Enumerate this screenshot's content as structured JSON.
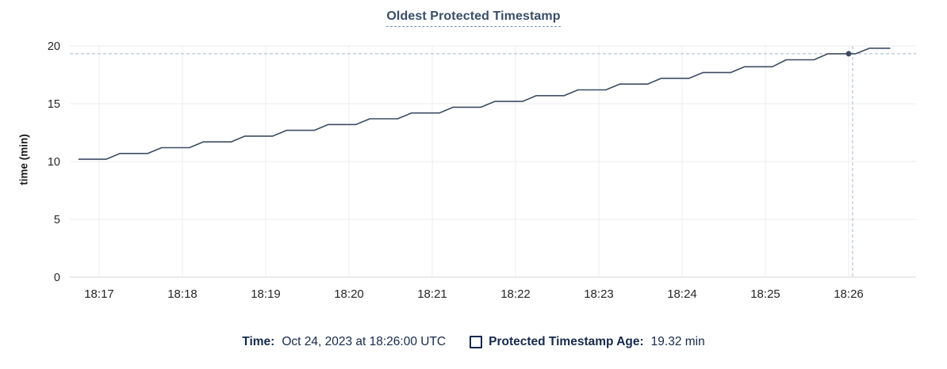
{
  "chart_data": {
    "type": "line",
    "title": "Oldest Protected Timestamp",
    "xlabel": "",
    "ylabel": "time (min)",
    "ylim": [
      0,
      20
    ],
    "y_ticks": [
      0,
      5,
      10,
      15,
      20
    ],
    "x_ticks": [
      "18:17",
      "18:18",
      "18:19",
      "18:20",
      "18:21",
      "18:22",
      "18:23",
      "18:24",
      "18:25",
      "18:26"
    ],
    "x_tick_interval_seconds": 60,
    "grid": true,
    "legend_position": "bottom",
    "series": [
      {
        "name": "Protected Timestamp Age",
        "unit": "min",
        "points_seconds_after_first_tick_vs_minutes": [
          [
            -15,
            10.2
          ],
          [
            5,
            10.2
          ],
          [
            15,
            10.7
          ],
          [
            35,
            10.7
          ],
          [
            45,
            11.2
          ],
          [
            65,
            11.2
          ],
          [
            75,
            11.7
          ],
          [
            95,
            11.7
          ],
          [
            105,
            12.2
          ],
          [
            125,
            12.2
          ],
          [
            135,
            12.7
          ],
          [
            155,
            12.7
          ],
          [
            165,
            13.2
          ],
          [
            185,
            13.2
          ],
          [
            195,
            13.7
          ],
          [
            215,
            13.7
          ],
          [
            225,
            14.2
          ],
          [
            245,
            14.2
          ],
          [
            255,
            14.7
          ],
          [
            275,
            14.7
          ],
          [
            285,
            15.2
          ],
          [
            305,
            15.2
          ],
          [
            315,
            15.7
          ],
          [
            335,
            15.7
          ],
          [
            345,
            16.2
          ],
          [
            365,
            16.2
          ],
          [
            375,
            16.7
          ],
          [
            395,
            16.7
          ],
          [
            405,
            17.2
          ],
          [
            425,
            17.2
          ],
          [
            435,
            17.7
          ],
          [
            455,
            17.7
          ],
          [
            465,
            18.2
          ],
          [
            485,
            18.2
          ],
          [
            495,
            18.8
          ],
          [
            515,
            18.8
          ],
          [
            525,
            19.32
          ],
          [
            545,
            19.32
          ],
          [
            555,
            19.8
          ],
          [
            570,
            19.8
          ]
        ]
      }
    ],
    "crosshair": {
      "x_label": "18:26:00",
      "seconds_after_first_tick": 540,
      "value": 19.32
    }
  },
  "legend": {
    "time_label": "Time:",
    "time_value": "Oct 24, 2023 at 18:26:00 UTC",
    "series_label": "Protected Timestamp Age:",
    "series_value": "19.32 min"
  },
  "colors": {
    "title": "#384e6b",
    "title_underline": "#7a93b5",
    "line": "#3e4c63",
    "grid": "#ececec",
    "zero_line": "#d6d6d6",
    "crosshair": "#a3b8cc",
    "tick_text": "#262626",
    "legend_text": "#16294d"
  }
}
